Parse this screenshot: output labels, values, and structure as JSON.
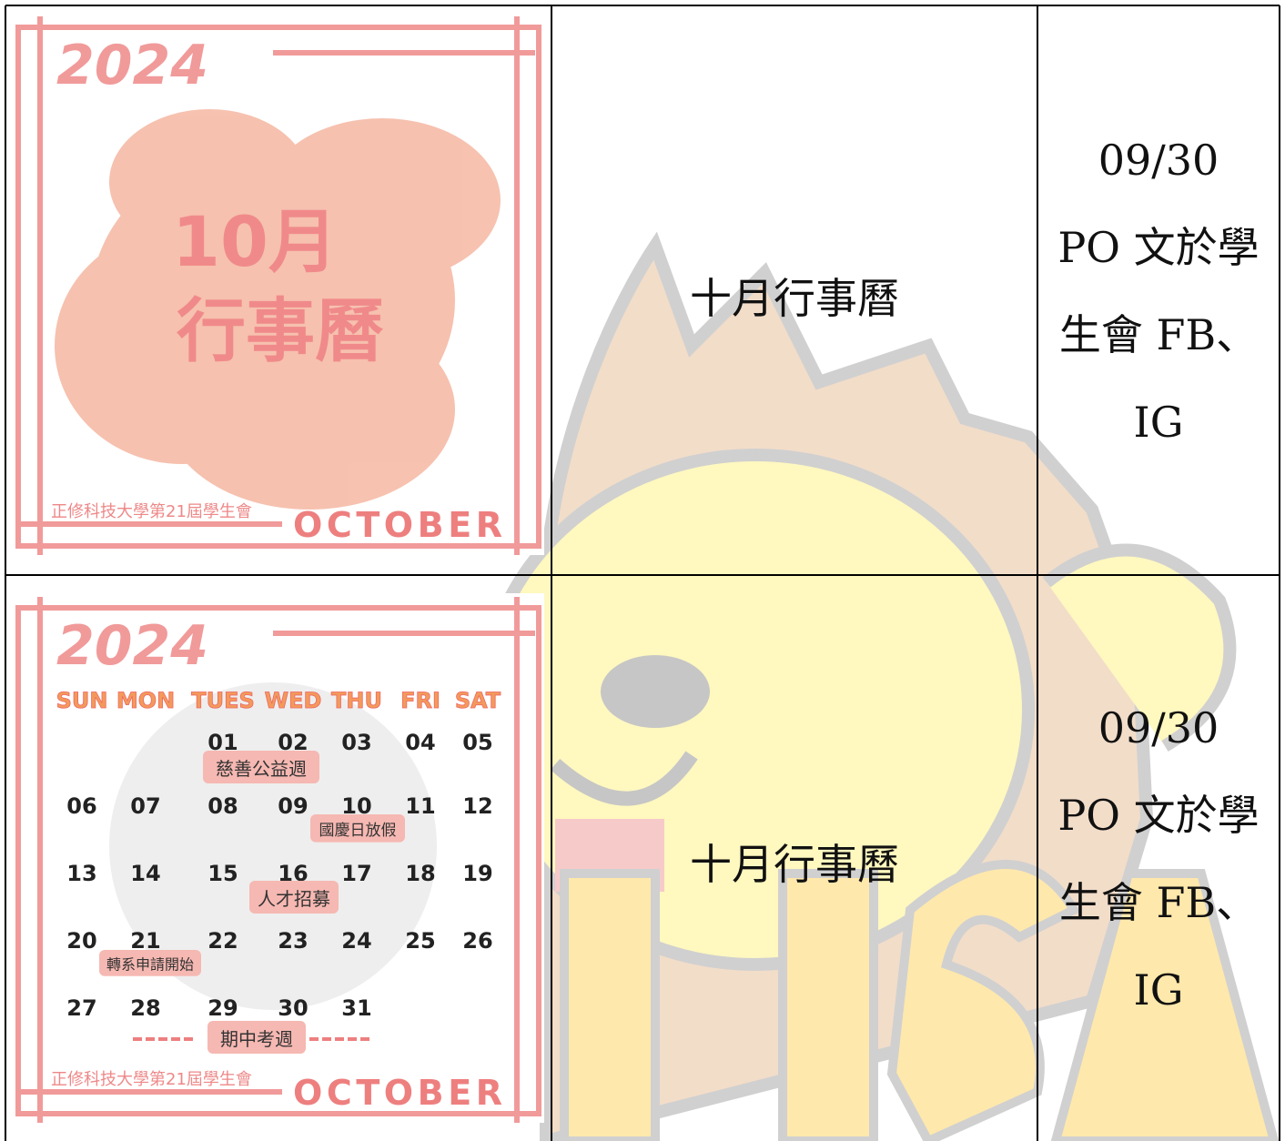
{
  "table": {
    "rows": [
      {
        "poster": {
          "year": "2024",
          "title_month": "10月",
          "title": "行事曆",
          "footer": "正修科技大學第21屆學生會",
          "month_name": "OCTOBER"
        },
        "item": "十月行事曆",
        "note_date": "09/30",
        "note_text": "PO 文於學生會 FB、IG"
      },
      {
        "poster": {
          "year": "2024",
          "weekdays": [
            "SUN",
            "MON",
            "TUES",
            "WED",
            "THU",
            "FRI",
            "SAT"
          ],
          "dates": [
            "01",
            "02",
            "03",
            "04",
            "05",
            "06",
            "07",
            "08",
            "09",
            "10",
            "11",
            "12",
            "13",
            "14",
            "15",
            "16",
            "17",
            "18",
            "19",
            "20",
            "21",
            "22",
            "23",
            "24",
            "25",
            "26",
            "27",
            "28",
            "29",
            "30",
            "31"
          ],
          "events": [
            "慈善公益週",
            "國慶日放假",
            "人才招募",
            "轉系申請開始",
            "期中考週"
          ],
          "footer": "正修科技大學第21屆學生會",
          "month_name": "OCTOBER"
        },
        "item": "十月行事曆",
        "note_date": "09/30",
        "note_text": "PO 文於學生會 FB、IG"
      }
    ]
  }
}
